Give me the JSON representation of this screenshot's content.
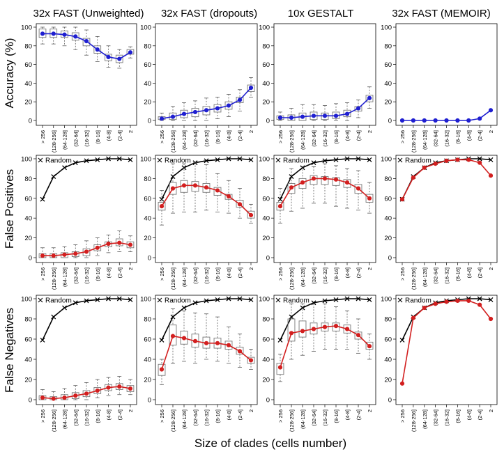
{
  "chart_data": {
    "type": "line",
    "x_label": "Size of clades (cells number)",
    "categories": [
      "> 256",
      "(128-256]",
      "(64-128]",
      "(32-64]",
      "(16-32]",
      "(8-16]",
      "(4-8]",
      "(2-4]",
      "2"
    ],
    "column_titles": [
      "32x FAST (Unweighted)",
      "32x FAST (dropouts)",
      "10x GESTALT",
      "32x FAST (MEMOIR)"
    ],
    "row_labels": [
      "Accuracy (%)",
      "False Positives",
      "False Negatives"
    ],
    "y_ticks": [
      "0",
      "20",
      "40",
      "60",
      "80",
      "100"
    ],
    "ylim": [
      0,
      100
    ],
    "legend_label": "Random",
    "colors": {
      "accuracy": "#1f1fd0",
      "error": "#d21f1f",
      "random": "#000000",
      "box": "#777777"
    },
    "panels": [
      [
        {
          "series": [
            93,
            93,
            92,
            90,
            85,
            76,
            68,
            66,
            73
          ],
          "q1": [
            89,
            89,
            89,
            86,
            80,
            72,
            64,
            62,
            71
          ],
          "q3": [
            98,
            98,
            96,
            94,
            88,
            80,
            71,
            70,
            76
          ],
          "wlo": [
            82,
            82,
            80,
            76,
            70,
            63,
            57,
            56,
            67
          ],
          "whi": [
            100,
            100,
            100,
            100,
            97,
            90,
            80,
            76,
            79
          ],
          "random": null
        },
        {
          "series": [
            2,
            4,
            7,
            9,
            11,
            13,
            16,
            22,
            35
          ],
          "q1": [
            1,
            1,
            3,
            4,
            6,
            9,
            12,
            19,
            31
          ],
          "q3": [
            4,
            8,
            11,
            13,
            15,
            17,
            20,
            25,
            38
          ],
          "wlo": [
            0,
            0,
            0,
            0,
            0,
            2,
            4,
            10,
            25
          ],
          "whi": [
            8,
            15,
            19,
            21,
            24,
            25,
            28,
            33,
            46
          ],
          "random": null
        },
        {
          "series": [
            3,
            3,
            4,
            5,
            5,
            5,
            7,
            13,
            24
          ],
          "q1": [
            1,
            0,
            0,
            1,
            1,
            2,
            4,
            10,
            20
          ],
          "q3": [
            5,
            6,
            8,
            9,
            8,
            9,
            11,
            15,
            27
          ],
          "wlo": [
            0,
            0,
            0,
            0,
            0,
            0,
            0,
            3,
            13
          ],
          "whi": [
            9,
            13,
            17,
            17,
            16,
            18,
            19,
            22,
            36
          ],
          "random": null
        },
        {
          "series": [
            0,
            0,
            0,
            0,
            0,
            0,
            0,
            2,
            11
          ],
          "q1": null,
          "q3": null,
          "wlo": null,
          "whi": null,
          "random": null
        }
      ],
      [
        {
          "series": [
            2,
            2,
            3,
            4,
            6,
            10,
            14,
            15,
            13
          ],
          "q1": [
            0,
            0,
            0,
            1,
            2,
            7,
            11,
            12,
            10
          ],
          "q3": [
            4,
            4,
            5,
            6,
            9,
            13,
            16,
            19,
            16
          ],
          "wlo": [
            0,
            0,
            0,
            0,
            0,
            2,
            5,
            6,
            6
          ],
          "whi": [
            10,
            10,
            11,
            13,
            17,
            20,
            23,
            27,
            22
          ],
          "random": [
            59,
            82,
            91,
            96,
            98,
            99,
            100,
            100,
            99
          ]
        },
        {
          "series": [
            52,
            70,
            73,
            73,
            71,
            68,
            62,
            54,
            43
          ],
          "q1": [
            48,
            64,
            66,
            67,
            66,
            63,
            59,
            51,
            40
          ],
          "q3": [
            56,
            76,
            78,
            77,
            75,
            71,
            64,
            58,
            47
          ],
          "wlo": [
            33,
            45,
            46,
            46,
            48,
            46,
            45,
            40,
            35
          ],
          "whi": [
            68,
            95,
            95,
            96,
            94,
            85,
            78,
            70,
            54
          ],
          "random": [
            59,
            82,
            91,
            96,
            98,
            99,
            100,
            100,
            99
          ]
        },
        {
          "series": [
            52,
            71,
            76,
            80,
            80,
            79,
            76,
            70,
            60
          ],
          "q1": [
            48,
            65,
            70,
            74,
            74,
            73,
            71,
            65,
            56
          ],
          "q3": [
            56,
            75,
            80,
            83,
            82,
            81,
            79,
            74,
            64
          ],
          "wlo": [
            35,
            47,
            50,
            55,
            55,
            52,
            50,
            48,
            45
          ],
          "whi": [
            70,
            90,
            92,
            92,
            95,
            93,
            90,
            88,
            76
          ],
          "random": [
            59,
            82,
            91,
            96,
            98,
            99,
            100,
            100,
            99
          ]
        },
        {
          "series": [
            59,
            81,
            91,
            95,
            98,
            99,
            99,
            96,
            83
          ],
          "q1": null,
          "q3": null,
          "wlo": null,
          "whi": null,
          "random": [
            59,
            82,
            91,
            96,
            98,
            99,
            100,
            100,
            99
          ]
        }
      ],
      [
        {
          "series": [
            2,
            1,
            2,
            4,
            6,
            9,
            12,
            13,
            11
          ],
          "q1": [
            0,
            0,
            0,
            1,
            3,
            6,
            9,
            10,
            8
          ],
          "q3": [
            4,
            3,
            5,
            7,
            9,
            12,
            15,
            16,
            14
          ],
          "wlo": [
            0,
            0,
            0,
            0,
            0,
            2,
            4,
            5,
            5
          ],
          "whi": [
            10,
            8,
            11,
            14,
            17,
            20,
            22,
            23,
            20
          ],
          "random": [
            59,
            82,
            91,
            96,
            98,
            99,
            100,
            100,
            99
          ]
        },
        {
          "series": [
            30,
            63,
            61,
            58,
            56,
            56,
            54,
            48,
            39
          ],
          "q1": [
            24,
            54,
            55,
            52,
            51,
            51,
            50,
            45,
            36
          ],
          "q3": [
            35,
            74,
            68,
            65,
            62,
            61,
            58,
            52,
            42
          ],
          "wlo": [
            15,
            36,
            38,
            36,
            40,
            38,
            36,
            32,
            30
          ],
          "whi": [
            40,
            90,
            88,
            86,
            85,
            82,
            72,
            65,
            50
          ],
          "random": [
            59,
            82,
            91,
            96,
            98,
            99,
            100,
            100,
            99
          ]
        },
        {
          "series": [
            32,
            66,
            68,
            70,
            72,
            73,
            70,
            64,
            53
          ],
          "q1": [
            25,
            58,
            62,
            65,
            68,
            68,
            66,
            60,
            50
          ],
          "q3": [
            36,
            80,
            78,
            76,
            76,
            76,
            74,
            67,
            57
          ],
          "wlo": [
            18,
            40,
            44,
            48,
            50,
            50,
            50,
            46,
            40
          ],
          "whi": [
            45,
            95,
            95,
            95,
            95,
            92,
            88,
            80,
            65
          ],
          "random": [
            59,
            82,
            91,
            96,
            98,
            99,
            100,
            100,
            99
          ]
        },
        {
          "series": [
            16,
            81,
            91,
            95,
            97,
            98,
            98,
            94,
            80
          ],
          "q1": null,
          "q3": null,
          "wlo": null,
          "whi": null,
          "random": [
            59,
            82,
            91,
            96,
            98,
            99,
            100,
            100,
            99
          ]
        }
      ]
    ]
  }
}
